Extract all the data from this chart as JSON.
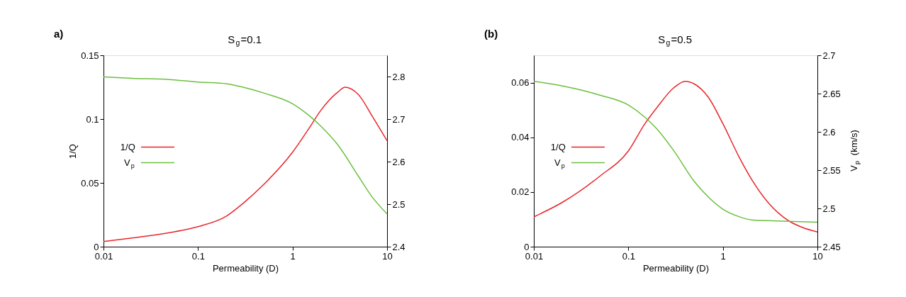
{
  "chart_data": [
    {
      "type": "line",
      "title": "S$_{g}$=0.1",
      "xlabel": "Permeability (D)",
      "ylabel": "1/Q",
      "annotations": [
        "a)"
      ],
      "log": "x",
      "legend": "left",
      "xlim": [
        0.01,
        10
      ],
      "xticks": [
        0.01,
        0.1,
        1,
        10
      ],
      "ylim": [
        0,
        0.15
      ],
      "yticks": [
        0,
        0.05,
        0.1,
        0.15
      ],
      "y2lim": [
        2.4,
        2.85
      ],
      "y2ticks": [
        2.4,
        2.5,
        2.6,
        2.7,
        2.8
      ],
      "series": [
        {
          "name": "1/Q",
          "color": "#e8262b",
          "x": [
            0.01,
            0.02,
            0.05,
            0.1,
            0.2,
            0.3,
            0.5,
            1,
            1.5,
            2,
            3,
            3.6,
            5,
            7,
            10
          ],
          "values": [
            0.004,
            0.0068,
            0.011,
            0.0157,
            0.024,
            0.034,
            0.049,
            0.074,
            0.093,
            0.107,
            0.121,
            0.125,
            0.119,
            0.102,
            0.083
          ]
        },
        {
          "name": "V$_{p}$",
          "color": "#6cbf3f",
          "axis": "y2",
          "x": [
            0.01,
            0.02,
            0.05,
            0.1,
            0.2,
            0.3,
            0.5,
            1,
            1.5,
            2,
            3,
            5,
            7,
            10
          ],
          "values": [
            2.799,
            2.796,
            2.793,
            2.787,
            2.783,
            2.775,
            2.761,
            2.736,
            2.708,
            2.683,
            2.64,
            2.565,
            2.516,
            2.477
          ]
        }
      ]
    },
    {
      "type": "line",
      "title": "S$_{g}$=0.5",
      "xlabel": "Permeability (D)",
      "y2label": "V$_{p}$ (km/s)",
      "annotations": [
        "(b)"
      ],
      "log": "x",
      "legend": "left",
      "xlim": [
        0.01,
        10
      ],
      "xticks": [
        0.01,
        0.1,
        1,
        10
      ],
      "ylim": [
        0,
        0.07
      ],
      "yticks": [
        0,
        0.02,
        0.04,
        0.06
      ],
      "y2lim": [
        2.45,
        2.7
      ],
      "y2ticks": [
        2.45,
        2.5,
        2.55,
        2.6,
        2.65,
        2.7
      ],
      "series": [
        {
          "name": "1/Q",
          "color": "#e8262b",
          "x": [
            0.01,
            0.02,
            0.05,
            0.1,
            0.15,
            0.2,
            0.3,
            0.4,
            0.5,
            0.7,
            1,
            1.5,
            2,
            3,
            5,
            7,
            10
          ],
          "values": [
            0.0109,
            0.0162,
            0.0258,
            0.035,
            0.045,
            0.0508,
            0.058,
            0.0605,
            0.0595,
            0.0547,
            0.045,
            0.0325,
            0.0248,
            0.0162,
            0.0094,
            0.007,
            0.0054
          ]
        },
        {
          "name": "V$_{p}$",
          "color": "#6cbf3f",
          "axis": "y2",
          "x": [
            0.01,
            0.02,
            0.05,
            0.1,
            0.15,
            0.2,
            0.3,
            0.5,
            0.7,
            1,
            1.5,
            2,
            3,
            5,
            10
          ],
          "values": [
            2.666,
            2.66,
            2.648,
            2.635,
            2.619,
            2.604,
            2.576,
            2.535,
            2.515,
            2.499,
            2.489,
            2.485,
            2.484,
            2.483,
            2.482
          ]
        }
      ]
    }
  ]
}
